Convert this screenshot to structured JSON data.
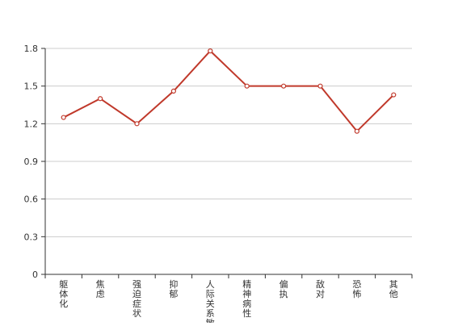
{
  "chart_data": {
    "type": "line",
    "categories": [
      "躯体化",
      "焦虑",
      "强迫症状",
      "抑郁",
      "人际关系敏感",
      "精神病性",
      "偏执",
      "敌对",
      "恐怖",
      "其他"
    ],
    "series": [
      {
        "values": [
          1.25,
          1.4,
          1.2,
          1.46,
          1.78,
          1.5,
          1.5,
          1.5,
          1.14,
          1.43
        ],
        "color": "#c0392b"
      }
    ],
    "yticks": [
      "0",
      "0.3",
      "0.6",
      "0.9",
      "1.2",
      "1.5",
      "1.8"
    ],
    "ylim": [
      0,
      1.8
    ],
    "grid": true,
    "gridColor": "#cccccc",
    "axisColor": "#333333",
    "title": "",
    "xlabel": "",
    "ylabel": ""
  }
}
